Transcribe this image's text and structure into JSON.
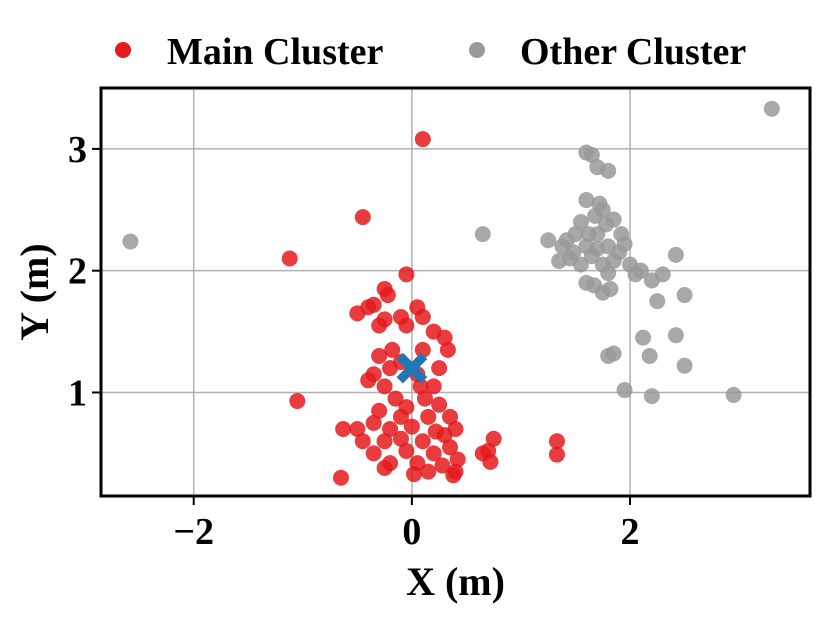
{
  "chart_data": {
    "type": "scatter",
    "xlabel": "X (m)",
    "ylabel": "Y (m)",
    "xlim": [
      -2.85,
      3.65
    ],
    "ylim": [
      0.15,
      3.5
    ],
    "xticks": [
      -2,
      0,
      2
    ],
    "xtick_labels": [
      "−2",
      "0",
      "2"
    ],
    "yticks": [
      1,
      2,
      3
    ],
    "ytick_labels": [
      "1",
      "2",
      "3"
    ],
    "grid": true,
    "legend": {
      "position": "top, above plot",
      "entries": [
        "Main Cluster",
        "Other Cluster"
      ]
    },
    "colors": {
      "main": "#e41a1c",
      "other": "#999999",
      "center": "#1f77b4"
    },
    "series": [
      {
        "name": "Main Cluster",
        "points": [
          [
            0.1,
            3.08
          ],
          [
            -0.45,
            2.44
          ],
          [
            -1.12,
            2.1
          ],
          [
            -0.05,
            1.97
          ],
          [
            -0.35,
            1.72
          ],
          [
            -0.4,
            1.7
          ],
          [
            -0.25,
            1.85
          ],
          [
            -0.22,
            1.8
          ],
          [
            -0.5,
            1.65
          ],
          [
            -0.25,
            1.6
          ],
          [
            -0.1,
            1.62
          ],
          [
            0.05,
            1.7
          ],
          [
            -0.05,
            1.55
          ],
          [
            0.1,
            1.62
          ],
          [
            0.2,
            1.5
          ],
          [
            -0.3,
            1.55
          ],
          [
            0.3,
            1.45
          ],
          [
            0.33,
            1.35
          ],
          [
            -0.18,
            1.35
          ],
          [
            -0.3,
            1.3
          ],
          [
            0.1,
            1.35
          ],
          [
            -0.1,
            1.25
          ],
          [
            0.05,
            1.15
          ],
          [
            -0.35,
            1.15
          ],
          [
            -0.2,
            1.2
          ],
          [
            0.25,
            1.2
          ],
          [
            -0.25,
            1.05
          ],
          [
            0.2,
            1.05
          ],
          [
            -0.4,
            1.1
          ],
          [
            0.12,
            0.95
          ],
          [
            -0.15,
            0.95
          ],
          [
            0.25,
            0.9
          ],
          [
            -0.3,
            0.85
          ],
          [
            0.35,
            0.8
          ],
          [
            -0.1,
            0.8
          ],
          [
            0.15,
            0.8
          ],
          [
            -0.35,
            0.75
          ],
          [
            0.4,
            0.7
          ],
          [
            -0.2,
            0.7
          ],
          [
            0.0,
            0.72
          ],
          [
            0.3,
            0.65
          ],
          [
            -0.5,
            0.7
          ],
          [
            -0.45,
            0.6
          ],
          [
            0.1,
            0.6
          ],
          [
            -0.25,
            0.6
          ],
          [
            0.35,
            0.55
          ],
          [
            -0.05,
            0.52
          ],
          [
            0.2,
            0.5
          ],
          [
            -0.35,
            0.5
          ],
          [
            0.42,
            0.45
          ],
          [
            0.05,
            0.42
          ],
          [
            -0.2,
            0.42
          ],
          [
            0.28,
            0.4
          ],
          [
            0.4,
            0.35
          ],
          [
            0.15,
            0.35
          ],
          [
            0.02,
            0.33
          ],
          [
            -0.25,
            0.38
          ],
          [
            0.38,
            0.32
          ],
          [
            -0.1,
            0.62
          ],
          [
            0.22,
            0.68
          ],
          [
            -0.05,
            0.88
          ],
          [
            0.08,
            1.05
          ],
          [
            -0.65,
            0.3
          ],
          [
            -0.63,
            0.7
          ],
          [
            -1.05,
            0.93
          ],
          [
            0.65,
            0.5
          ],
          [
            0.7,
            0.52
          ],
          [
            0.75,
            0.62
          ],
          [
            0.72,
            0.43
          ],
          [
            1.33,
            0.6
          ],
          [
            1.33,
            0.49
          ]
        ]
      },
      {
        "name": "Other Cluster",
        "points": [
          [
            3.3,
            3.33
          ],
          [
            -2.58,
            2.24
          ],
          [
            0.65,
            2.3
          ],
          [
            1.6,
            2.97
          ],
          [
            1.65,
            2.95
          ],
          [
            1.7,
            2.85
          ],
          [
            1.8,
            2.82
          ],
          [
            1.6,
            2.58
          ],
          [
            1.72,
            2.55
          ],
          [
            1.75,
            2.5
          ],
          [
            1.85,
            2.42
          ],
          [
            1.68,
            2.45
          ],
          [
            1.55,
            2.4
          ],
          [
            1.92,
            2.3
          ],
          [
            1.5,
            2.3
          ],
          [
            1.42,
            2.25
          ],
          [
            1.38,
            2.2
          ],
          [
            1.25,
            2.25
          ],
          [
            1.48,
            2.15
          ],
          [
            1.6,
            2.2
          ],
          [
            1.7,
            2.18
          ],
          [
            1.8,
            2.2
          ],
          [
            1.9,
            2.15
          ],
          [
            1.45,
            2.1
          ],
          [
            1.55,
            2.05
          ],
          [
            1.35,
            2.08
          ],
          [
            1.65,
            2.12
          ],
          [
            1.75,
            2.05
          ],
          [
            1.85,
            2.08
          ],
          [
            2.0,
            2.05
          ],
          [
            2.1,
            2.0
          ],
          [
            1.8,
            1.98
          ],
          [
            2.05,
            1.97
          ],
          [
            2.3,
            1.97
          ],
          [
            2.2,
            1.92
          ],
          [
            1.6,
            1.9
          ],
          [
            1.67,
            1.88
          ],
          [
            1.82,
            1.85
          ],
          [
            1.75,
            1.82
          ],
          [
            2.5,
            1.8
          ],
          [
            2.25,
            1.75
          ],
          [
            2.42,
            2.13
          ],
          [
            2.12,
            1.45
          ],
          [
            2.42,
            1.47
          ],
          [
            1.85,
            1.32
          ],
          [
            1.8,
            1.3
          ],
          [
            2.18,
            1.3
          ],
          [
            2.5,
            1.22
          ],
          [
            1.95,
            1.02
          ],
          [
            2.2,
            0.97
          ],
          [
            2.95,
            0.98
          ],
          [
            1.7,
            2.3
          ],
          [
            1.78,
            2.38
          ],
          [
            1.62,
            2.3
          ],
          [
            1.95,
            2.22
          ]
        ]
      }
    ],
    "center_marker": {
      "shape": "X",
      "point": [
        0.0,
        1.2
      ]
    }
  }
}
